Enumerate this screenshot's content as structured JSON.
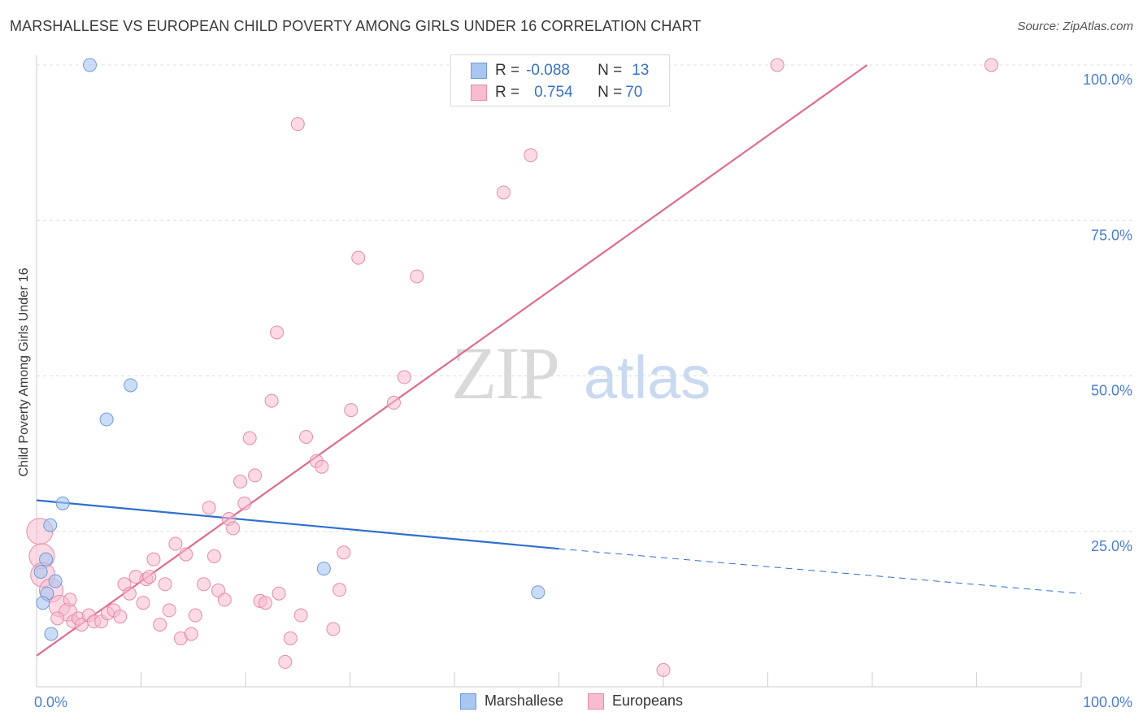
{
  "header": {
    "title": "MARSHALLESE VS EUROPEAN CHILD POVERTY AMONG GIRLS UNDER 16 CORRELATION CHART",
    "source": "Source: ZipAtlas.com"
  },
  "watermark": {
    "zip": "ZIP",
    "atlas": "atlas"
  },
  "legend": {
    "rows": [
      {
        "r_label": "R =",
        "r_value": "-0.088",
        "n_label": "N =",
        "n_value": "13",
        "color": "#a9c6f0",
        "border": "#6f9ad6"
      },
      {
        "r_label": "R =",
        "r_value": "0.754",
        "n_label": "N =",
        "n_value": "70",
        "color": "#f7bcd0",
        "border": "#e58aa8"
      }
    ]
  },
  "bottom_legend": {
    "items": [
      {
        "label": "Marshallese",
        "color": "#a9c6f0",
        "border": "#6f9ad6"
      },
      {
        "label": "Europeans",
        "color": "#f7bcd0",
        "border": "#e58aa8"
      }
    ]
  },
  "chart_data": {
    "type": "scatter",
    "ylabel": "Child Poverty Among Girls Under 16",
    "xlabel": "",
    "xlim": [
      0,
      100
    ],
    "ylim": [
      0,
      100
    ],
    "x_ticks": [
      "0.0%",
      "100.0%"
    ],
    "y_ticks": [
      {
        "value": 25,
        "label": "25.0%"
      },
      {
        "value": 50,
        "label": "50.0%"
      },
      {
        "value": 75,
        "label": "75.0%"
      },
      {
        "value": 100,
        "label": "100.0%"
      }
    ],
    "grid": true,
    "legend_position": "top-center",
    "series": [
      {
        "name": "Marshallese",
        "color": "#a9c6f0",
        "stroke": "#6f9ad6",
        "points": [
          [
            5.1,
            100
          ],
          [
            0.4,
            18.5
          ],
          [
            0.9,
            20.5
          ],
          [
            1.0,
            15.0
          ],
          [
            1.8,
            17.0
          ],
          [
            1.3,
            26.0
          ],
          [
            2.5,
            29.5
          ],
          [
            0.6,
            13.5
          ],
          [
            1.4,
            8.5
          ],
          [
            6.7,
            43.0
          ],
          [
            9.0,
            48.5
          ],
          [
            27.5,
            19.0
          ],
          [
            48.0,
            15.2
          ]
        ],
        "trend": {
          "x1": 0,
          "y1": 30.0,
          "x2": 50,
          "y2": 22.2,
          "dash_to_x": 100,
          "dash_to_y": 15.0,
          "color": "#2f6fd0"
        }
      },
      {
        "name": "Europeans",
        "color": "#f7bcd0",
        "stroke": "#e58aa8",
        "points": [
          [
            0.3,
            25.0
          ],
          [
            0.5,
            21.0
          ],
          [
            0.6,
            18.0
          ],
          [
            1.4,
            15.5
          ],
          [
            2.2,
            13.0
          ],
          [
            3.0,
            12.0
          ],
          [
            3.5,
            10.5
          ],
          [
            4.0,
            11.0
          ],
          [
            4.3,
            10.0
          ],
          [
            5.0,
            11.5
          ],
          [
            5.5,
            10.5
          ],
          [
            6.2,
            10.5
          ],
          [
            6.8,
            11.8
          ],
          [
            7.4,
            12.3
          ],
          [
            8.0,
            11.3
          ],
          [
            8.4,
            16.5
          ],
          [
            8.9,
            15.0
          ],
          [
            9.5,
            17.7
          ],
          [
            10.2,
            13.5
          ],
          [
            10.5,
            17.3
          ],
          [
            10.8,
            17.7
          ],
          [
            11.2,
            20.5
          ],
          [
            11.8,
            10.0
          ],
          [
            12.3,
            16.5
          ],
          [
            12.7,
            12.3
          ],
          [
            13.3,
            23.0
          ],
          [
            13.8,
            7.8
          ],
          [
            14.3,
            21.3
          ],
          [
            14.8,
            8.5
          ],
          [
            15.2,
            11.5
          ],
          [
            16.0,
            16.5
          ],
          [
            16.5,
            28.8
          ],
          [
            17.0,
            21.0
          ],
          [
            17.4,
            15.5
          ],
          [
            18.0,
            14.0
          ],
          [
            18.4,
            27.0
          ],
          [
            18.8,
            25.5
          ],
          [
            19.5,
            33.0
          ],
          [
            19.9,
            29.5
          ],
          [
            20.4,
            40.0
          ],
          [
            20.9,
            34.0
          ],
          [
            21.4,
            13.8
          ],
          [
            21.9,
            13.5
          ],
          [
            22.5,
            46.0
          ],
          [
            23.0,
            57.0
          ],
          [
            23.2,
            15.0
          ],
          [
            23.8,
            4.0
          ],
          [
            24.3,
            7.8
          ],
          [
            25.0,
            90.5
          ],
          [
            25.3,
            11.5
          ],
          [
            25.8,
            40.2
          ],
          [
            26.8,
            36.3
          ],
          [
            27.3,
            35.4
          ],
          [
            28.4,
            9.3
          ],
          [
            29.0,
            15.6
          ],
          [
            29.4,
            21.6
          ],
          [
            30.1,
            44.5
          ],
          [
            30.8,
            69.0
          ],
          [
            34.2,
            45.7
          ],
          [
            35.2,
            49.8
          ],
          [
            36.4,
            66.0
          ],
          [
            44.7,
            79.5
          ],
          [
            47.3,
            85.5
          ],
          [
            51.5,
            100
          ],
          [
            53.5,
            100
          ],
          [
            70.9,
            100
          ],
          [
            91.4,
            100
          ],
          [
            60.0,
            2.7
          ],
          [
            2.0,
            11.0
          ],
          [
            3.2,
            14.0
          ]
        ],
        "trend": {
          "x1": 0,
          "y1": 5.0,
          "x2": 79.5,
          "y2": 100,
          "color": "#e06b93"
        }
      }
    ]
  }
}
